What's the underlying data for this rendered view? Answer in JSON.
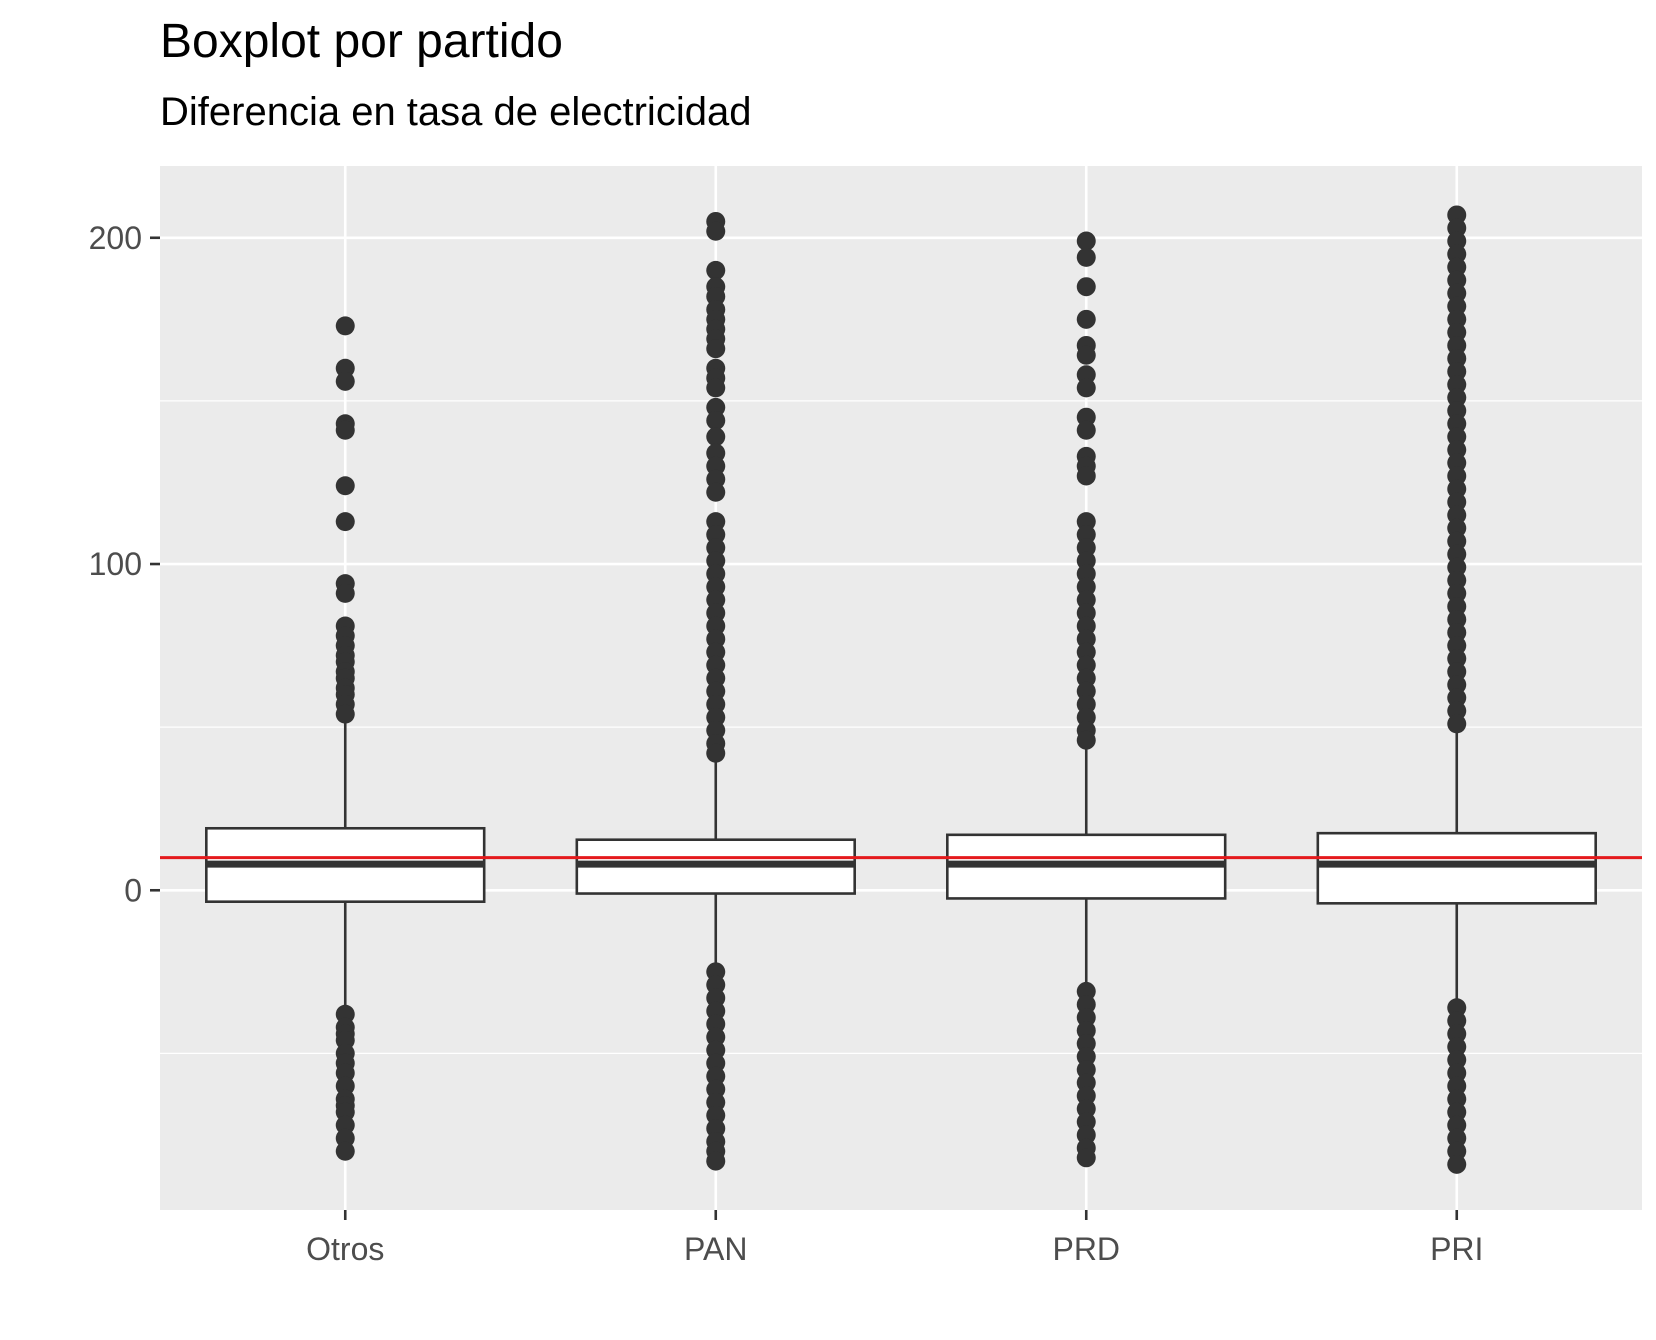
{
  "chart_data": {
    "type": "boxplot",
    "title": "Boxplot por partido",
    "subtitle": "Diferencia en tasa de electricidad",
    "xlabel": "",
    "ylabel": "",
    "ylim": [
      -98,
      222
    ],
    "y_ticks": [
      0,
      100,
      200
    ],
    "grid": true,
    "reference_line": {
      "y": 10,
      "color": "#e41a1c"
    },
    "categories": [
      "Otros",
      "PAN",
      "PRD",
      "PRI"
    ],
    "boxes": [
      {
        "category": "Otros",
        "q1": -3.5,
        "median": 8,
        "q3": 19,
        "whisker_low": -38,
        "whisker_high": 54,
        "outliers": [
          173,
          160,
          156,
          143,
          141,
          124,
          113,
          94,
          91,
          81,
          78,
          75,
          72,
          70,
          67,
          65,
          62,
          60,
          57,
          54,
          -38,
          -42,
          -44,
          -46,
          -50,
          -53,
          -56,
          -60,
          -64,
          -66,
          -68,
          -72,
          -76,
          -80
        ]
      },
      {
        "category": "PAN",
        "q1": -1,
        "median": 8,
        "q3": 15.5,
        "whisker_low": -25,
        "whisker_high": 41,
        "outliers": [
          205,
          202,
          190,
          185,
          182,
          178,
          175,
          172,
          169,
          166,
          160,
          157,
          154,
          148,
          144,
          139,
          134,
          130,
          126,
          122,
          113,
          109,
          105,
          101,
          97,
          93,
          89,
          85,
          81,
          77,
          73,
          69,
          65,
          61,
          57,
          53,
          49,
          45,
          42,
          -25,
          -29,
          -33,
          -37,
          -41,
          -45,
          -49,
          -53,
          -57,
          -61,
          -65,
          -69,
          -73,
          -77,
          -80,
          -83
        ]
      },
      {
        "category": "PRD",
        "q1": -2.5,
        "median": 8,
        "q3": 17,
        "whisker_low": -31,
        "whisker_high": 46,
        "outliers": [
          199,
          194,
          185,
          175,
          167,
          164,
          158,
          154,
          145,
          141,
          133,
          130,
          127,
          113,
          109,
          105,
          101,
          97,
          93,
          89,
          85,
          81,
          77,
          73,
          69,
          65,
          61,
          57,
          53,
          49,
          46,
          -31,
          -35,
          -39,
          -43,
          -47,
          -51,
          -55,
          -59,
          -63,
          -67,
          -71,
          -75,
          -79,
          -82
        ]
      },
      {
        "category": "PRI",
        "q1": -4,
        "median": 8,
        "q3": 17.5,
        "whisker_low": -36,
        "whisker_high": 50,
        "outliers": [
          207,
          203,
          199,
          195,
          191,
          187,
          183,
          179,
          175,
          171,
          167,
          163,
          159,
          155,
          151,
          147,
          143,
          139,
          135,
          131,
          127,
          123,
          119,
          115,
          111,
          107,
          103,
          99,
          95,
          91,
          87,
          83,
          79,
          75,
          71,
          67,
          63,
          59,
          55,
          51,
          -36,
          -40,
          -44,
          -48,
          -52,
          -56,
          -60,
          -64,
          -68,
          -72,
          -76,
          -80,
          -84
        ]
      }
    ]
  }
}
